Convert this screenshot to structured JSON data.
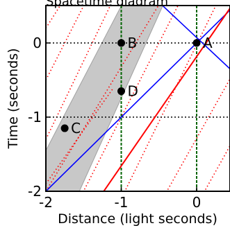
{
  "diagram": {
    "title_fragment": "Spacetime diagram",
    "xlabel": "Distance (light seconds)",
    "ylabel": "Time (seconds)",
    "x_ticks": [
      "-2",
      "-1",
      "0"
    ],
    "y_ticks": [
      "0",
      "-1",
      "-2"
    ],
    "points": [
      {
        "label": "A",
        "x": 0,
        "y": 0
      },
      {
        "label": "B",
        "x": -1,
        "y": 0
      },
      {
        "label": "C",
        "x": -1.75,
        "y": -1.15
      },
      {
        "label": "D",
        "x": -1,
        "y": -0.65
      }
    ],
    "colors": {
      "light_cone": "#0000ff",
      "worldline": "#ff0000",
      "dotted_worldlines": "#ff0000",
      "band_fill": "#c8c8c8",
      "vertical_dashed": "#006400"
    }
  }
}
